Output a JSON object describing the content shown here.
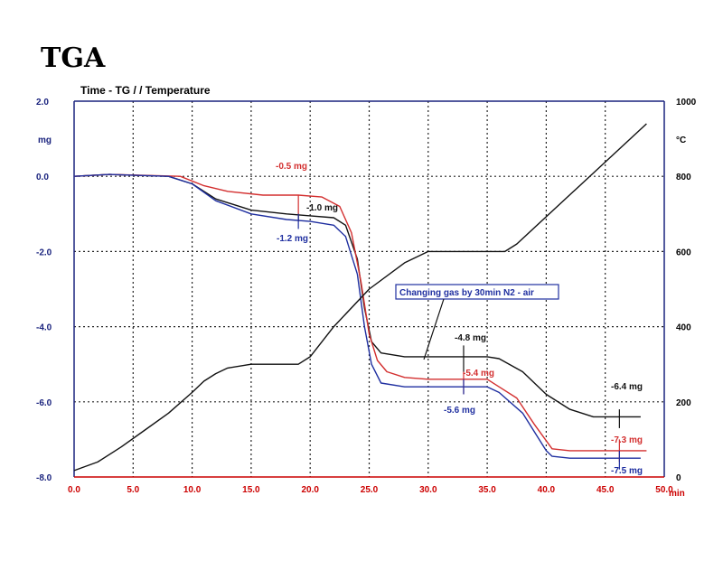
{
  "chart_data": {
    "type": "line",
    "title": "TGA",
    "subtitle": "Time - TG  /  / Temperature",
    "xlabel": "min",
    "ylabel_left": "mg",
    "ylabel_right": "°C",
    "xlim": [
      0,
      50
    ],
    "ylim_left": [
      -8,
      2
    ],
    "ylim_right": [
      0,
      1000
    ],
    "grid": true,
    "x_ticks": [
      "0.0",
      "5.0",
      "10.0",
      "15.0",
      "20.0",
      "25.0",
      "30.0",
      "35.0",
      "40.0",
      "45.0",
      "50.0"
    ],
    "y_left_ticks": [
      "2.0",
      "0.0",
      "-2.0",
      "-4.0",
      "-6.0",
      "-8.0"
    ],
    "y_right_ticks": [
      "1000",
      "800",
      "600",
      "400",
      "200",
      "0"
    ],
    "colors": {
      "left_axis": "#1a237e",
      "right_axis": "#000000",
      "x_axis": "#cc0000",
      "red": "#d32f2f",
      "black": "#111111",
      "blue": "#1f2fa0"
    },
    "series": [
      {
        "axis": "left",
        "color": "#111111",
        "x": [
          0,
          3,
          8,
          10,
          12,
          15,
          18,
          20,
          22,
          23,
          24,
          24.6,
          25.2,
          26,
          28,
          30,
          35,
          36,
          38,
          40,
          42,
          44,
          46,
          48
        ],
        "y": [
          0,
          0.05,
          0,
          -0.2,
          -0.6,
          -0.9,
          -1.0,
          -1.05,
          -1.1,
          -1.3,
          -2.2,
          -3.5,
          -4.4,
          -4.7,
          -4.8,
          -4.8,
          -4.8,
          -4.85,
          -5.2,
          -5.8,
          -6.2,
          -6.4,
          -6.4,
          -6.4
        ]
      },
      {
        "axis": "left",
        "color": "#d32f2f",
        "x": [
          0,
          3,
          9,
          11,
          13,
          16,
          19,
          21,
          22.5,
          23.5,
          24.3,
          25,
          25.7,
          26.5,
          28,
          30,
          35,
          36,
          37.5,
          39,
          40.5,
          42,
          48.5
        ],
        "y": [
          0,
          0.05,
          0,
          -0.25,
          -0.4,
          -0.5,
          -0.5,
          -0.55,
          -0.8,
          -1.5,
          -2.8,
          -4.2,
          -4.9,
          -5.2,
          -5.35,
          -5.4,
          -5.4,
          -5.6,
          -5.9,
          -6.6,
          -7.25,
          -7.3,
          -7.3
        ]
      },
      {
        "axis": "left",
        "color": "#1f2fa0",
        "x": [
          0,
          3,
          8,
          10,
          12,
          15,
          18,
          20,
          22,
          23,
          24,
          24.6,
          25.2,
          26,
          28,
          30,
          35,
          36,
          38,
          40,
          40.5,
          42,
          48
        ],
        "y": [
          0,
          0.05,
          0,
          -0.2,
          -0.65,
          -1.0,
          -1.15,
          -1.2,
          -1.3,
          -1.6,
          -2.6,
          -4.0,
          -5.0,
          -5.5,
          -5.6,
          -5.6,
          -5.6,
          -5.75,
          -6.3,
          -7.3,
          -7.45,
          -7.5,
          -7.5
        ]
      },
      {
        "axis": "right",
        "color": "#111111",
        "x": [
          0,
          2,
          4,
          6,
          8,
          10,
          11,
          12,
          13,
          15,
          19,
          20,
          22,
          25,
          28,
          30,
          36.5,
          37.5,
          48.5
        ],
        "y": [
          17,
          40,
          80,
          125,
          170,
          225,
          255,
          275,
          290,
          300,
          300,
          320,
          400,
          500,
          570,
          600,
          600,
          620,
          940
        ]
      }
    ],
    "annotations": [
      {
        "text": "-0.5 mg",
        "color": "#d32f2f"
      },
      {
        "text": "-1.0 mg",
        "color": "#111111"
      },
      {
        "text": "-1.2 mg",
        "color": "#1f2fa0"
      },
      {
        "text": "-4.8 mg",
        "color": "#111111"
      },
      {
        "text": "-5.4 mg",
        "color": "#d32f2f"
      },
      {
        "text": "-5.6 mg",
        "color": "#1f2fa0"
      },
      {
        "text": "-6.4 mg",
        "color": "#111111"
      },
      {
        "text": "-7.3 mg",
        "color": "#d32f2f"
      },
      {
        "text": "-7.5 mg",
        "color": "#1f2fa0"
      }
    ],
    "callout": "Changing gas by 30min N2 - air"
  }
}
